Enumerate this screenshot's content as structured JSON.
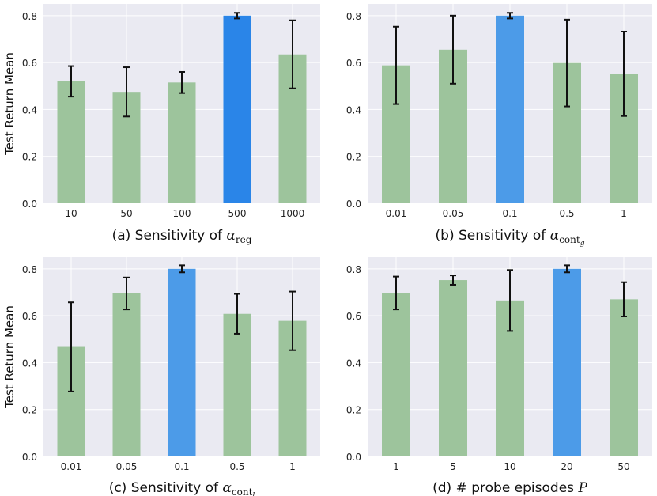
{
  "colors": {
    "panel_bg": "#eaeaf2",
    "grid": "#ffffff",
    "bar_default": "#9dc49c",
    "bar_highlight": "#4c9be8",
    "bar_highlight_strong": "#2a85e8",
    "error_bar": "#111111"
  },
  "chart_data": [
    {
      "type": "bar",
      "caption": "(a) Sensitivity of",
      "caption_math": "α",
      "caption_sub": "reg",
      "categories": [
        "10",
        "50",
        "100",
        "500",
        "1000"
      ],
      "values": [
        0.52,
        0.475,
        0.515,
        0.8,
        0.635
      ],
      "errors": [
        0.065,
        0.105,
        0.045,
        0.012,
        0.145
      ],
      "highlight_index": 3,
      "ylabel": "Test Return Mean",
      "ylim": [
        0,
        0.85
      ],
      "yticks": [
        "0.0",
        "0.2",
        "0.4",
        "0.6",
        "0.8"
      ],
      "grid": true
    },
    {
      "type": "bar",
      "caption": "(b) Sensitivity of",
      "caption_math": "α",
      "caption_sub": "cont",
      "caption_sub2": "g",
      "categories": [
        "0.01",
        "0.05",
        "0.1",
        "0.5",
        "1"
      ],
      "values": [
        0.588,
        0.655,
        0.8,
        0.598,
        0.552
      ],
      "errors": [
        0.165,
        0.145,
        0.012,
        0.185,
        0.18
      ],
      "highlight_index": 2,
      "ylabel": "",
      "ylim": [
        0,
        0.85
      ],
      "yticks": [
        "0.0",
        "0.2",
        "0.4",
        "0.6",
        "0.8"
      ],
      "grid": true
    },
    {
      "type": "bar",
      "caption": "(c) Sensitivity of",
      "caption_math": "α",
      "caption_sub": "cont",
      "caption_sub2": "l",
      "categories": [
        "0.01",
        "0.05",
        "0.1",
        "0.5",
        "1"
      ],
      "values": [
        0.467,
        0.695,
        0.8,
        0.608,
        0.578
      ],
      "errors": [
        0.19,
        0.068,
        0.015,
        0.085,
        0.125
      ],
      "highlight_index": 2,
      "ylabel": "Test Return Mean",
      "ylim": [
        0,
        0.85
      ],
      "yticks": [
        "0.0",
        "0.2",
        "0.4",
        "0.6",
        "0.8"
      ],
      "grid": true
    },
    {
      "type": "bar",
      "caption": "(d) # probe episodes",
      "caption_math": "P",
      "categories": [
        "1",
        "5",
        "10",
        "20",
        "50"
      ],
      "values": [
        0.697,
        0.752,
        0.665,
        0.8,
        0.67
      ],
      "errors": [
        0.07,
        0.02,
        0.13,
        0.015,
        0.073
      ],
      "highlight_index": 3,
      "ylabel": "",
      "ylim": [
        0,
        0.85
      ],
      "yticks": [
        "0.0",
        "0.2",
        "0.4",
        "0.6",
        "0.8"
      ],
      "grid": true
    }
  ]
}
